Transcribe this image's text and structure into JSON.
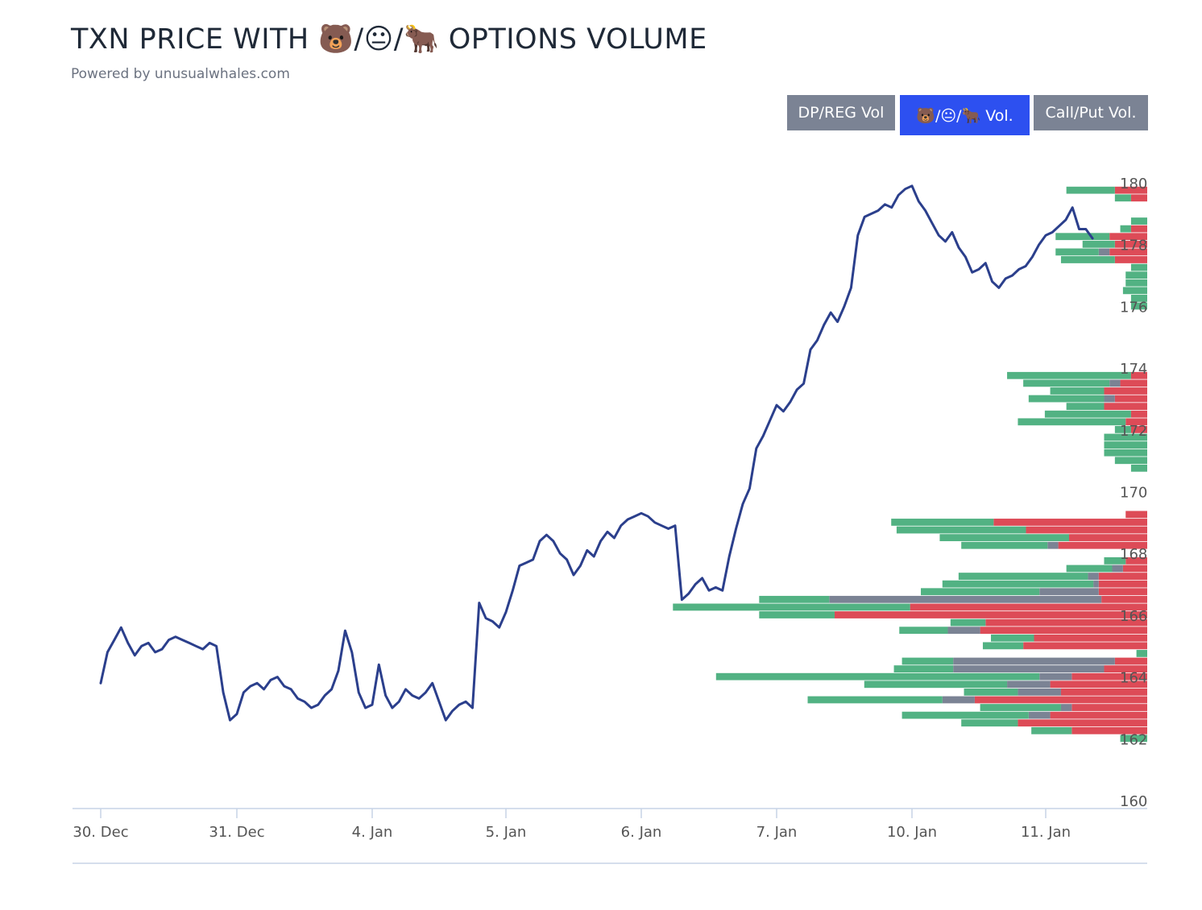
{
  "header": {
    "title": "TXN PRICE WITH 🐻/😐/🐂 OPTIONS VOLUME",
    "subtitle": "Powered by unusualwhales.com"
  },
  "tabs": [
    {
      "label": "DP/REG Vol",
      "active": false
    },
    {
      "label": "🐻/😐/🐂 Vol.",
      "active": true
    },
    {
      "label": "Call/Put Vol.",
      "active": false
    }
  ],
  "colors": {
    "price_line": "#2b3f8c",
    "bull": "#52b283",
    "neutral": "#7b8394",
    "bear": "#dd4b57",
    "tab_active": "#2d50f0",
    "tab_inactive": "#7b8394",
    "axis": "#c7d3e6"
  },
  "chart_data": {
    "type": "line",
    "title": "TXN PRICE WITH 🐻/😐/🐂 OPTIONS VOLUME",
    "x_categories": [
      "30. Dec",
      "31. Dec",
      "4. Jan",
      "5. Jan",
      "6. Jan",
      "7. Jan",
      "10. Jan",
      "11. Jan"
    ],
    "y_axis": {
      "ticks": [
        160,
        162,
        164,
        166,
        168,
        170,
        172,
        174,
        176,
        178,
        180
      ],
      "min": 160,
      "max": 180,
      "position": "right"
    },
    "price_series": {
      "name": "TXN",
      "points": [
        [
          0.0,
          163.8
        ],
        [
          0.05,
          164.8
        ],
        [
          0.1,
          165.2
        ],
        [
          0.15,
          165.6
        ],
        [
          0.2,
          165.1
        ],
        [
          0.25,
          164.7
        ],
        [
          0.3,
          165.0
        ],
        [
          0.35,
          165.1
        ],
        [
          0.4,
          164.8
        ],
        [
          0.45,
          164.9
        ],
        [
          0.5,
          165.2
        ],
        [
          0.55,
          165.3
        ],
        [
          0.6,
          165.2
        ],
        [
          0.65,
          165.1
        ],
        [
          0.7,
          165.0
        ],
        [
          0.75,
          164.9
        ],
        [
          0.8,
          165.1
        ],
        [
          0.85,
          165.0
        ],
        [
          0.9,
          163.5
        ],
        [
          0.95,
          162.6
        ],
        [
          1.0,
          162.8
        ],
        [
          1.05,
          163.5
        ],
        [
          1.1,
          163.7
        ],
        [
          1.15,
          163.8
        ],
        [
          1.2,
          163.6
        ],
        [
          1.25,
          163.9
        ],
        [
          1.3,
          164.0
        ],
        [
          1.35,
          163.7
        ],
        [
          1.4,
          163.6
        ],
        [
          1.45,
          163.3
        ],
        [
          1.5,
          163.2
        ],
        [
          1.55,
          163.0
        ],
        [
          1.6,
          163.1
        ],
        [
          1.65,
          163.4
        ],
        [
          1.7,
          163.6
        ],
        [
          1.75,
          164.2
        ],
        [
          1.8,
          165.5
        ],
        [
          1.85,
          164.8
        ],
        [
          1.9,
          163.5
        ],
        [
          1.95,
          163.0
        ],
        [
          2.0,
          163.1
        ],
        [
          2.05,
          164.4
        ],
        [
          2.1,
          163.4
        ],
        [
          2.15,
          163.0
        ],
        [
          2.2,
          163.2
        ],
        [
          2.25,
          163.6
        ],
        [
          2.3,
          163.4
        ],
        [
          2.35,
          163.3
        ],
        [
          2.4,
          163.5
        ],
        [
          2.45,
          163.8
        ],
        [
          2.5,
          163.2
        ],
        [
          2.55,
          162.6
        ],
        [
          2.6,
          162.9
        ],
        [
          2.65,
          163.1
        ],
        [
          2.7,
          163.2
        ],
        [
          2.75,
          163.0
        ],
        [
          2.8,
          166.4
        ],
        [
          2.85,
          165.9
        ],
        [
          2.9,
          165.8
        ],
        [
          2.95,
          165.6
        ],
        [
          3.0,
          166.1
        ],
        [
          3.05,
          166.8
        ],
        [
          3.1,
          167.6
        ],
        [
          3.15,
          167.7
        ],
        [
          3.2,
          167.8
        ],
        [
          3.25,
          168.4
        ],
        [
          3.3,
          168.6
        ],
        [
          3.35,
          168.4
        ],
        [
          3.4,
          168.0
        ],
        [
          3.45,
          167.8
        ],
        [
          3.5,
          167.3
        ],
        [
          3.55,
          167.6
        ],
        [
          3.6,
          168.1
        ],
        [
          3.65,
          167.9
        ],
        [
          3.7,
          168.4
        ],
        [
          3.75,
          168.7
        ],
        [
          3.8,
          168.5
        ],
        [
          3.85,
          168.9
        ],
        [
          3.9,
          169.1
        ],
        [
          3.95,
          169.2
        ],
        [
          4.0,
          169.3
        ],
        [
          4.05,
          169.2
        ],
        [
          4.1,
          169.0
        ],
        [
          4.15,
          168.9
        ],
        [
          4.2,
          168.8
        ],
        [
          4.25,
          168.9
        ],
        [
          4.3,
          166.5
        ],
        [
          4.35,
          166.7
        ],
        [
          4.4,
          167.0
        ],
        [
          4.45,
          167.2
        ],
        [
          4.5,
          166.8
        ],
        [
          4.55,
          166.9
        ],
        [
          4.6,
          166.8
        ],
        [
          4.65,
          167.9
        ],
        [
          4.7,
          168.8
        ],
        [
          4.75,
          169.6
        ],
        [
          4.8,
          170.1
        ],
        [
          4.85,
          171.4
        ],
        [
          4.9,
          171.8
        ],
        [
          4.95,
          172.3
        ],
        [
          5.0,
          172.8
        ],
        [
          5.05,
          172.6
        ],
        [
          5.1,
          172.9
        ],
        [
          5.15,
          173.3
        ],
        [
          5.2,
          173.5
        ],
        [
          5.25,
          174.6
        ],
        [
          5.3,
          174.9
        ],
        [
          5.35,
          175.4
        ],
        [
          5.4,
          175.8
        ],
        [
          5.45,
          175.5
        ],
        [
          5.5,
          176.0
        ],
        [
          5.55,
          176.6
        ],
        [
          5.6,
          178.3
        ],
        [
          5.65,
          178.9
        ],
        [
          5.7,
          179.0
        ],
        [
          5.75,
          179.1
        ],
        [
          5.8,
          179.3
        ],
        [
          5.85,
          179.2
        ],
        [
          5.9,
          179.6
        ],
        [
          5.95,
          179.8
        ],
        [
          6.0,
          179.9
        ],
        [
          6.05,
          179.4
        ],
        [
          6.1,
          179.1
        ],
        [
          6.15,
          178.7
        ],
        [
          6.2,
          178.3
        ],
        [
          6.25,
          178.1
        ],
        [
          6.3,
          178.4
        ],
        [
          6.35,
          177.9
        ],
        [
          6.4,
          177.6
        ],
        [
          6.45,
          177.1
        ],
        [
          6.5,
          177.2
        ],
        [
          6.55,
          177.4
        ],
        [
          6.6,
          176.8
        ],
        [
          6.65,
          176.6
        ],
        [
          6.7,
          176.9
        ],
        [
          6.75,
          177.0
        ],
        [
          6.8,
          177.2
        ],
        [
          6.85,
          177.3
        ],
        [
          6.9,
          177.6
        ],
        [
          6.95,
          178.0
        ],
        [
          7.0,
          178.3
        ],
        [
          7.05,
          178.4
        ],
        [
          7.1,
          178.6
        ],
        [
          7.15,
          178.8
        ],
        [
          7.2,
          179.2
        ],
        [
          7.25,
          178.5
        ],
        [
          7.3,
          178.5
        ],
        [
          7.35,
          178.2
        ]
      ]
    },
    "volume_profile": {
      "price_start": 162,
      "price_step": 0.25,
      "max_total": 1000,
      "stack_order_from_right": [
        "bear",
        "neutral",
        "bull"
      ],
      "rows": [
        [
          0,
          0,
          50
        ],
        [
          140,
          0,
          75
        ],
        [
          240,
          0,
          105
        ],
        [
          180,
          40,
          235
        ],
        [
          140,
          20,
          150
        ],
        [
          320,
          60,
          250
        ],
        [
          160,
          80,
          100
        ],
        [
          180,
          80,
          265
        ],
        [
          140,
          60,
          600
        ],
        [
          80,
          280,
          110
        ],
        [
          60,
          300,
          95
        ],
        [
          0,
          0,
          20
        ],
        [
          230,
          0,
          75
        ],
        [
          210,
          0,
          80
        ],
        [
          310,
          60,
          90
        ],
        [
          300,
          0,
          65
        ],
        [
          580,
          0,
          140
        ],
        [
          440,
          0,
          440
        ],
        [
          85,
          505,
          130
        ],
        [
          90,
          110,
          220
        ],
        [
          90,
          10,
          280
        ],
        [
          90,
          20,
          240
        ],
        [
          45,
          20,
          85
        ],
        [
          40,
          0,
          40
        ],
        [
          0,
          0,
          0
        ],
        [
          165,
          20,
          160
        ],
        [
          145,
          0,
          240
        ],
        [
          225,
          0,
          240
        ],
        [
          285,
          0,
          190
        ],
        [
          40,
          0,
          0
        ],
        [
          0,
          0,
          0
        ],
        [
          0,
          0,
          0
        ],
        [
          0,
          0,
          0
        ],
        [
          0,
          0,
          0
        ],
        [
          0,
          0,
          0
        ],
        [
          0,
          0,
          30
        ],
        [
          0,
          0,
          60
        ],
        [
          0,
          0,
          80
        ],
        [
          0,
          0,
          80
        ],
        [
          0,
          0,
          80
        ],
        [
          30,
          0,
          30
        ],
        [
          40,
          0,
          200
        ],
        [
          30,
          0,
          160
        ],
        [
          80,
          0,
          70
        ],
        [
          60,
          20,
          140
        ],
        [
          80,
          0,
          100
        ],
        [
          50,
          20,
          160
        ],
        [
          30,
          0,
          230
        ],
        [
          0,
          0,
          0
        ],
        [
          0,
          0,
          0
        ],
        [
          0,
          0,
          0
        ],
        [
          0,
          0,
          0
        ],
        [
          0,
          0,
          0
        ],
        [
          0,
          0,
          0
        ],
        [
          0,
          0,
          0
        ],
        [
          0,
          0,
          0
        ],
        [
          0,
          0,
          30
        ],
        [
          0,
          0,
          30
        ],
        [
          0,
          0,
          45
        ],
        [
          0,
          0,
          40
        ],
        [
          0,
          0,
          40
        ],
        [
          0,
          0,
          30
        ],
        [
          60,
          0,
          100
        ],
        [
          70,
          20,
          80
        ],
        [
          60,
          0,
          60
        ],
        [
          70,
          0,
          100
        ],
        [
          30,
          0,
          20
        ],
        [
          0,
          0,
          30
        ],
        [
          0,
          0,
          0
        ],
        [
          0,
          0,
          0
        ],
        [
          30,
          0,
          30
        ],
        [
          60,
          0,
          90
        ],
        [
          0,
          0,
          0
        ],
        [
          0,
          0,
          0
        ],
        [
          0,
          0,
          0
        ],
        [
          0,
          0,
          0
        ],
        [
          0,
          0,
          0
        ],
        [
          0,
          0,
          0
        ],
        [
          0,
          0,
          0
        ],
        [
          0,
          0,
          0
        ],
        [
          0,
          0,
          0
        ],
        [
          0,
          0,
          0
        ],
        [
          0,
          0,
          0
        ],
        [
          0,
          0,
          0
        ],
        [
          0,
          0,
          0
        ]
      ]
    }
  }
}
